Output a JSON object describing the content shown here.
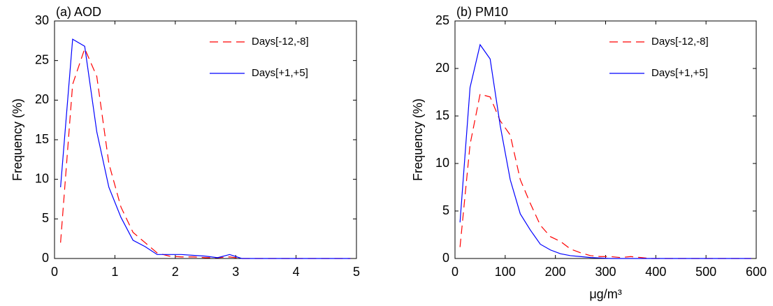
{
  "chart_data": [
    {
      "type": "line",
      "title": "(a) AOD",
      "ylabel": "Frequency (%)",
      "x": [
        0.1,
        0.3,
        0.5,
        0.7,
        0.9,
        1.1,
        1.3,
        1.5,
        1.7,
        1.9,
        2.1,
        2.3,
        2.5,
        2.7,
        2.9,
        3.1,
        3.3,
        3.5,
        3.7,
        3.9,
        4.1,
        4.3,
        4.5,
        4.7,
        4.9
      ],
      "series": [
        {
          "name": "Days[-12,-8]",
          "color": "#ff0000",
          "dash": true,
          "values": [
            2,
            22,
            26.5,
            23,
            12,
            6.5,
            3.3,
            2,
            0.7,
            0.3,
            0.2,
            0.2,
            0.1,
            0.1,
            0.2,
            0,
            0,
            0,
            0,
            0,
            0,
            0,
            0,
            0,
            0
          ]
        },
        {
          "name": "Days[+1,+5]",
          "color": "#0000ff",
          "dash": false,
          "values": [
            9,
            27.7,
            26.8,
            16,
            9,
            5.2,
            2.3,
            1.5,
            0.5,
            0.5,
            0.5,
            0.4,
            0.3,
            0.1,
            0.5,
            0,
            0,
            0,
            0,
            0,
            0,
            0,
            0,
            0,
            0
          ]
        }
      ],
      "xlim": [
        0,
        5
      ],
      "xticks": [
        0,
        1,
        2,
        3,
        4,
        5
      ],
      "ylim": [
        0,
        30
      ],
      "yticks": [
        0,
        5,
        10,
        15,
        20,
        25,
        30
      ],
      "legend": "upper right"
    },
    {
      "type": "line",
      "title": "(b) PM10",
      "ylabel": "Frequency (%)",
      "xlabel": "μg/m³",
      "x": [
        10,
        30,
        50,
        70,
        90,
        110,
        130,
        150,
        170,
        190,
        210,
        230,
        250,
        270,
        290,
        310,
        330,
        350,
        370,
        390,
        410,
        430,
        450,
        470,
        490,
        510,
        530,
        550,
        570,
        590
      ],
      "series": [
        {
          "name": "Days[-12,-8]",
          "color": "#ff0000",
          "dash": true,
          "values": [
            1.2,
            12,
            17.3,
            17,
            14.5,
            13,
            8.3,
            5.8,
            3.5,
            2.3,
            1.8,
            1,
            0.6,
            0.3,
            0.2,
            0.2,
            0.1,
            0.2,
            0.1,
            0,
            0,
            0,
            0,
            0,
            0,
            0,
            0,
            0,
            0,
            0
          ]
        },
        {
          "name": "Days[+1,+5]",
          "color": "#0000ff",
          "dash": false,
          "values": [
            3.8,
            18,
            22.5,
            21,
            14,
            8.3,
            4.7,
            3,
            1.5,
            0.9,
            0.5,
            0.3,
            0.2,
            0.1,
            0.05,
            0,
            0,
            0,
            0,
            0,
            0,
            0,
            0,
            0,
            0,
            0,
            0,
            0,
            0,
            0
          ]
        }
      ],
      "xlim": [
        0,
        600
      ],
      "xticks": [
        0,
        100,
        200,
        300,
        400,
        500,
        600
      ],
      "ylim": [
        0,
        25
      ],
      "yticks": [
        0,
        5,
        10,
        15,
        20,
        25
      ],
      "legend": "upper right"
    }
  ]
}
